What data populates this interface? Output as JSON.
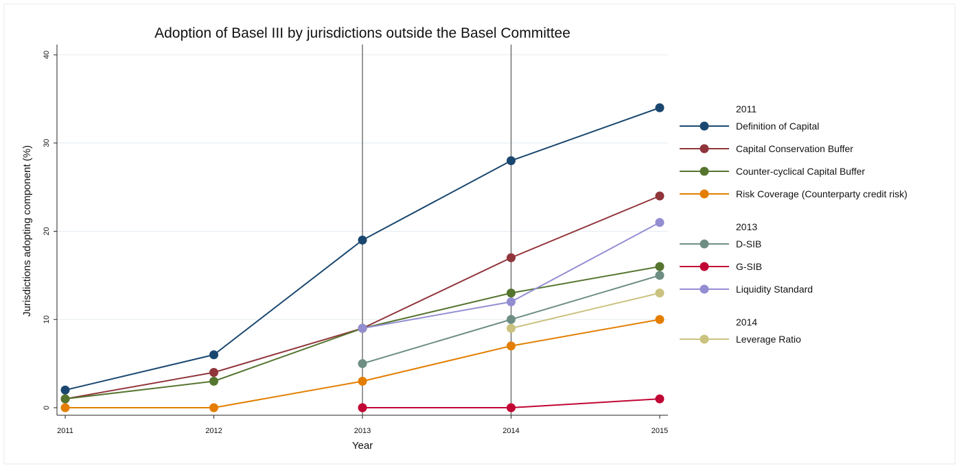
{
  "chart_data": {
    "type": "line",
    "title": "Adoption of Basel III by jurisdictions outside the Basel Committee",
    "xlabel": "Year",
    "ylabel": "Jurisdictions adopting component (%)",
    "x_ticks": [
      "2011",
      "2012",
      "2013",
      "2014",
      "2015"
    ],
    "y_ticks": [
      "0",
      "10",
      "20",
      "30",
      "40"
    ],
    "xlim": [
      2011,
      2015
    ],
    "ylim": [
      0,
      40
    ],
    "grid": true,
    "vertical_reference_lines": [
      2013,
      2014
    ],
    "legend_position": "right",
    "legend_groups": [
      {
        "title": "2011",
        "series": [
          "Definition of Capital",
          "Capital Conservation Buffer",
          "Counter-cyclical Capital Buffer",
          "Risk Coverage (Counterparty credit risk)"
        ]
      },
      {
        "title": "2013",
        "series": [
          "D-SIB",
          "G-SIB",
          "Liquidity Standard"
        ]
      },
      {
        "title": "2014",
        "series": [
          "Leverage Ratio"
        ]
      }
    ],
    "series": [
      {
        "name": "Definition of Capital",
        "color": "#1a476f",
        "x": [
          2011,
          2012,
          2013,
          2014,
          2015
        ],
        "values": [
          2,
          6,
          19,
          28,
          34
        ]
      },
      {
        "name": "Capital Conservation Buffer",
        "color": "#90353b",
        "x": [
          2011,
          2012,
          2013,
          2014,
          2015
        ],
        "values": [
          1,
          4,
          9,
          17,
          24
        ]
      },
      {
        "name": "Counter-cyclical Capital Buffer",
        "color": "#55752f",
        "x": [
          2011,
          2012,
          2013,
          2014,
          2015
        ],
        "values": [
          1,
          3,
          9,
          13,
          16
        ]
      },
      {
        "name": "Risk Coverage (Counterparty credit risk)",
        "color": "#e37e00",
        "x": [
          2011,
          2012,
          2013,
          2014,
          2015
        ],
        "values": [
          0,
          0,
          3,
          7,
          10
        ]
      },
      {
        "name": "D-SIB",
        "color": "#6e8e84",
        "x": [
          2013,
          2014,
          2015
        ],
        "values": [
          5,
          10,
          15
        ]
      },
      {
        "name": "G-SIB",
        "color": "#c10534",
        "x": [
          2013,
          2014,
          2015
        ],
        "values": [
          0,
          0,
          1
        ]
      },
      {
        "name": "Liquidity Standard",
        "color": "#938dd2",
        "x": [
          2013,
          2014,
          2015
        ],
        "values": [
          9,
          12,
          21
        ]
      },
      {
        "name": "Leverage Ratio",
        "color": "#cac27e",
        "x": [
          2014,
          2015
        ],
        "values": [
          9,
          13
        ]
      }
    ]
  }
}
